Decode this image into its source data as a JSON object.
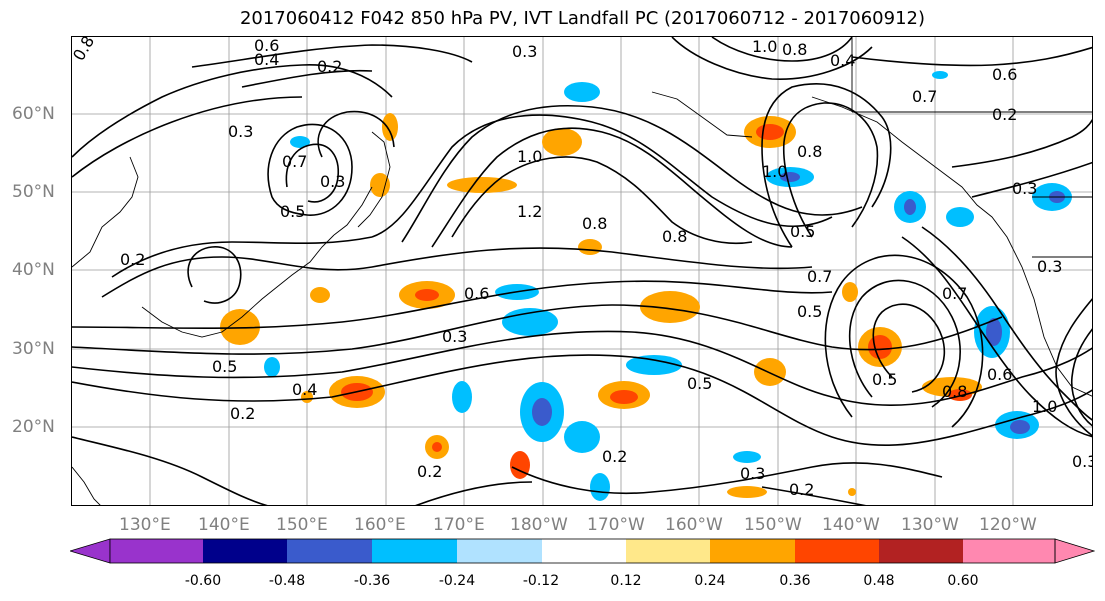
{
  "title": "2017060412 F042 850 hPa PV, IVT Landfall PC (2017060712 - 2017060912)",
  "lat_labels": [
    "60°N",
    "50°N",
    "40°N",
    "30°N",
    "20°N"
  ],
  "lon_labels": [
    "130°E",
    "140°E",
    "150°E",
    "160°E",
    "170°E",
    "180°W",
    "170°W",
    "160°W",
    "150°W",
    "140°W",
    "130°W",
    "120°W"
  ],
  "colorbar": {
    "ticks": [
      "-0.60",
      "-0.48",
      "-0.36",
      "-0.24",
      "-0.12",
      "0.12",
      "0.24",
      "0.36",
      "0.48",
      "0.60"
    ],
    "colors": [
      "#9933cc",
      "#00008b",
      "#3a5bcc",
      "#00bfff",
      "#b0e2ff",
      "#ffffff",
      "#ffe88a",
      "#ffa500",
      "#ff4500",
      "#b22222",
      "#ff88b0",
      "#ff88b0"
    ]
  },
  "contour_labels": [
    "0.8",
    "0.6",
    "0.4",
    "0.3",
    "0.2",
    "1.0",
    "0.8",
    "0.4",
    "0.6",
    "0.2",
    "0.3",
    "1.0",
    "0.7",
    "0.3",
    "0.5",
    "1.2",
    "0.8",
    "0.8",
    "1.0",
    "0.8",
    "0.5",
    "0.3",
    "0.2",
    "0.7",
    "0.5",
    "0.6",
    "0.3",
    "0.5",
    "0.4",
    "0.2",
    "0.3",
    "0.7",
    "0.5",
    "0.8",
    "0.5",
    "0.6",
    "1.0",
    "0.2",
    "0.2",
    "0.3",
    "0.2",
    "0.3",
    "0.7"
  ]
}
